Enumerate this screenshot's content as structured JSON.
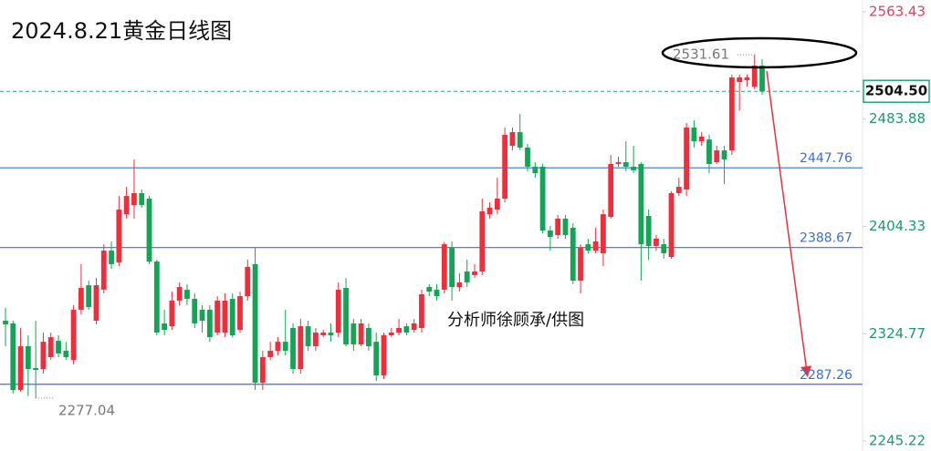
{
  "chart_data": {
    "type": "candlestick",
    "title": "2024.8.21黄金日线图",
    "note": "分析师徐顾承/供图",
    "up_color": "#ef2d3b",
    "down_color": "#13a555",
    "level_color": "#3a6fd8",
    "ylim": [
      2237.8,
      2572.2
    ],
    "yticks": [
      2563.43,
      2483.88,
      2404.33,
      2324.77,
      2245.22
    ],
    "levels": [
      2447.76,
      2388.67,
      2287.26
    ],
    "last_price": {
      "value": 2504.5,
      "label": "2504.50"
    },
    "high_marker": 2531.61,
    "low_marker": 2277.04,
    "open": [
      2334.4,
      2332.4,
      2283.0,
      2315.5,
      2299.3,
      2298.6,
      2307.4,
      2319.5,
      2312.1,
      2305.3,
      2342.5,
      2360.7,
      2334.4,
      2357.4,
      2386.4,
      2377.6,
      2413.4,
      2420.2,
      2429.0,
      2424.9,
      2378.3,
      2332.4,
      2330.3,
      2349.3,
      2357.4,
      2350.6,
      2342.5,
      2342.5,
      2325.6,
      2325.6,
      2350.6,
      2327.6,
      2352.6,
      2376.3,
      2288.4,
      2307.4,
      2312.1,
      2318.8,
      2329.0,
      2298.6,
      2330.3,
      2315.5,
      2323.6,
      2325.6,
      2325.6,
      2358.7,
      2332.4,
      2316.8,
      2329.0,
      2318.8,
      2293.9,
      2323.6,
      2325.6,
      2330.3,
      2327.6,
      2329.0,
      2359.4,
      2357.4,
      2357.4,
      2388.4,
      2359.4,
      2370.9,
      2368.2,
      2370.9,
      2413.4,
      2416.8,
      2424.9,
      2464.1,
      2474.2,
      2462.8,
      2448.6,
      2448.6,
      2401.3,
      2397.9,
      2410.1,
      2403.3,
      2364.1,
      2391.1,
      2386.4,
      2384.4,
      2411.4,
      2450.6,
      2451.9,
      2448.6,
      2450.6,
      2412.1,
      2389.8,
      2391.1,
      2381.7,
      2429.0,
      2431.7,
      2477.6,
      2467.5,
      2468.8,
      2451.9,
      2460.7,
      2460.7,
      2511.4,
      2512.7,
      2508.0,
      2523.6
    ],
    "high": [
      2343.8,
      2334.4,
      2329.0,
      2323.6,
      2334.4,
      2325.6,
      2325.6,
      2323.6,
      2318.8,
      2345.9,
      2376.3,
      2364.1,
      2366.1,
      2391.1,
      2393.2,
      2426.9,
      2433.7,
      2454.0,
      2431.7,
      2426.9,
      2379.7,
      2342.5,
      2356.0,
      2362.8,
      2361.4,
      2354.7,
      2345.9,
      2345.9,
      2352.6,
      2354.7,
      2354.7,
      2356.0,
      2379.7,
      2388.4,
      2312.1,
      2318.8,
      2322.2,
      2342.5,
      2332.4,
      2335.7,
      2334.4,
      2329.0,
      2327.6,
      2332.4,
      2362.8,
      2366.1,
      2335.7,
      2335.7,
      2332.4,
      2325.6,
      2325.6,
      2329.0,
      2335.7,
      2332.4,
      2335.7,
      2357.4,
      2361.4,
      2361.4,
      2392.5,
      2393.2,
      2369.5,
      2379.7,
      2376.3,
      2424.9,
      2422.2,
      2440.5,
      2477.6,
      2477.6,
      2487.7,
      2465.5,
      2451.9,
      2450.6,
      2404.7,
      2412.8,
      2412.8,
      2406.7,
      2391.1,
      2395.2,
      2403.3,
      2416.8,
      2457.3,
      2456.0,
      2467.5,
      2464.1,
      2451.9,
      2416.8,
      2397.9,
      2395.2,
      2430.3,
      2440.5,
      2481.0,
      2483.0,
      2474.2,
      2472.2,
      2464.1,
      2464.1,
      2516.8,
      2516.8,
      2516.8,
      2531.61,
      2528.3
    ],
    "low": [
      2315.5,
      2280.3,
      2281.7,
      2278.5,
      2277.04,
      2295.2,
      2305.3,
      2307.4,
      2305.3,
      2302.0,
      2339.1,
      2342.5,
      2331.7,
      2354.7,
      2372.9,
      2374.9,
      2410.1,
      2410.1,
      2418.2,
      2376.3,
      2323.6,
      2323.6,
      2327.6,
      2345.9,
      2345.9,
      2329.0,
      2325.6,
      2318.8,
      2323.6,
      2322.2,
      2322.2,
      2325.6,
      2349.3,
      2283.0,
      2283.0,
      2305.3,
      2308.7,
      2308.7,
      2295.2,
      2295.2,
      2312.1,
      2312.1,
      2322.2,
      2318.8,
      2322.2,
      2315.5,
      2312.1,
      2315.5,
      2312.1,
      2289.8,
      2291.2,
      2322.2,
      2323.6,
      2323.6,
      2325.6,
      2325.6,
      2352.6,
      2349.3,
      2354.7,
      2349.3,
      2356.0,
      2359.4,
      2366.1,
      2368.2,
      2410.1,
      2413.4,
      2422.2,
      2460.7,
      2460.7,
      2445.2,
      2440.5,
      2399.2,
      2386.4,
      2395.2,
      2395.2,
      2361.4,
      2354.7,
      2384.4,
      2384.4,
      2374.9,
      2410.1,
      2448.6,
      2445.2,
      2443.8,
      2364.1,
      2379.7,
      2386.4,
      2380.3,
      2380.3,
      2426.9,
      2426.9,
      2462.8,
      2464.1,
      2443.8,
      2450.6,
      2435.7,
      2457.3,
      2490.0,
      2508.0,
      2506.0,
      2502.0
    ],
    "close": [
      2331.7,
      2283.0,
      2315.5,
      2298.6,
      2297.9,
      2318.8,
      2322.2,
      2310.1,
      2307.4,
      2342.5,
      2358.7,
      2344.5,
      2360.7,
      2386.4,
      2376.3,
      2416.8,
      2426.9,
      2429.0,
      2420.2,
      2378.3,
      2325.6,
      2327.6,
      2349.3,
      2359.4,
      2350.6,
      2332.4,
      2334.4,
      2322.2,
      2349.3,
      2349.3,
      2323.6,
      2352.6,
      2374.3,
      2288.4,
      2307.4,
      2312.1,
      2318.8,
      2312.1,
      2298.6,
      2330.3,
      2315.5,
      2325.6,
      2325.6,
      2323.6,
      2357.4,
      2316.8,
      2316.8,
      2332.4,
      2315.5,
      2293.9,
      2323.6,
      2325.6,
      2329.0,
      2325.6,
      2332.4,
      2354.0,
      2356.0,
      2352.6,
      2391.1,
      2359.4,
      2362.8,
      2362.8,
      2370.9,
      2415.5,
      2418.2,
      2424.9,
      2472.2,
      2474.2,
      2462.8,
      2448.6,
      2443.8,
      2401.3,
      2396.5,
      2410.1,
      2397.9,
      2364.1,
      2388.4,
      2386.4,
      2393.2,
      2413.4,
      2450.6,
      2451.9,
      2448.6,
      2445.9,
      2391.1,
      2389.8,
      2395.2,
      2384.4,
      2429.0,
      2433.7,
      2477.6,
      2467.5,
      2470.9,
      2450.6,
      2460.7,
      2454.0,
      2514.8,
      2514.8,
      2514.8,
      2523.6,
      2504.5
    ]
  }
}
